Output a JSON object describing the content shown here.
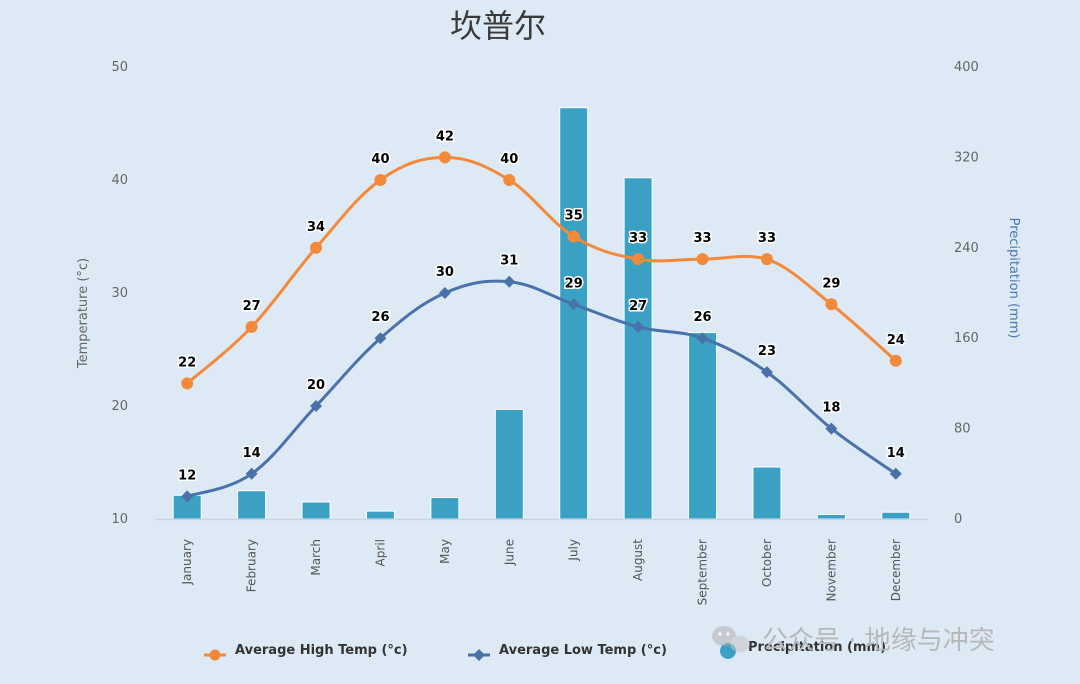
{
  "chart_data": {
    "type": "bar+line",
    "title": "坎普尔",
    "categories": [
      "January",
      "February",
      "March",
      "April",
      "May",
      "June",
      "July",
      "August",
      "September",
      "October",
      "November",
      "December"
    ],
    "y_left": {
      "label": "Temperature (°c)",
      "range": [
        10,
        50
      ],
      "ticks": [
        10,
        20,
        30,
        40,
        50
      ]
    },
    "y_right": {
      "label": "Precipitation (mm)",
      "range": [
        0,
        400
      ],
      "ticks": [
        0,
        80,
        160,
        240,
        320,
        400
      ]
    },
    "series": [
      {
        "name": "Average High Temp (°c)",
        "type": "line",
        "axis": "left",
        "color": "#f5893a",
        "marker": "circle",
        "values": [
          22,
          27,
          34,
          40,
          42,
          40,
          35,
          33,
          33,
          33,
          29,
          24
        ]
      },
      {
        "name": "Average Low Temp (°c)",
        "type": "line",
        "axis": "left",
        "color": "#4a72aa",
        "marker": "diamond",
        "values": [
          12,
          14,
          20,
          26,
          30,
          31,
          29,
          27,
          26,
          23,
          18,
          14
        ]
      },
      {
        "name": "Precipitation (mm)",
        "type": "bar",
        "axis": "right",
        "color": "#3aa1c4",
        "values": [
          21,
          25,
          15,
          7,
          19,
          97,
          364,
          302,
          165,
          46,
          4,
          6
        ]
      }
    ],
    "legend": "bottom"
  },
  "watermark": {
    "text": "公众号 · 地缘与冲突"
  }
}
